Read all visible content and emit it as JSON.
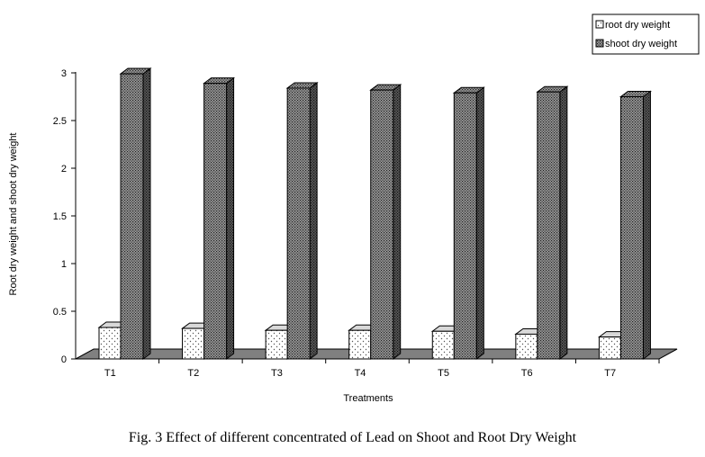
{
  "caption": "Fig. 3 Effect of different concentrated of Lead on Shoot and Root Dry Weight",
  "chart_data": {
    "type": "bar",
    "title": "",
    "xlabel": "Treatments",
    "ylabel": "Root dry weight and shoot dry weight",
    "ylim": [
      0,
      3
    ],
    "yticks": [
      "0",
      "0.5",
      "1",
      "1.5",
      "2",
      "2.5",
      "3"
    ],
    "categories": [
      "T1",
      "T2",
      "T3",
      "T4",
      "T5",
      "T6",
      "T7"
    ],
    "legend_position": "top-right",
    "grid": false,
    "series": [
      {
        "name": "root dry weight",
        "values": [
          0.33,
          0.32,
          0.3,
          0.3,
          0.29,
          0.26,
          0.23
        ],
        "fill": "dots-light"
      },
      {
        "name": "shoot dry weight",
        "values": [
          2.99,
          2.89,
          2.84,
          2.82,
          2.79,
          2.8,
          2.75
        ],
        "fill": "dots-dark"
      }
    ]
  }
}
